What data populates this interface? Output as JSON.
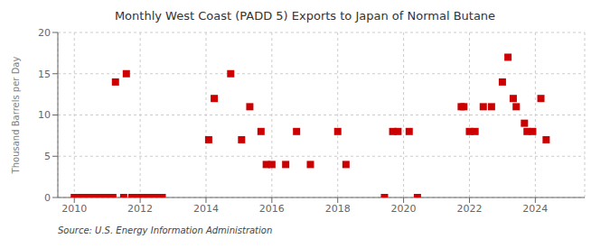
{
  "chart_data": {
    "type": "scatter",
    "title": "Monthly West Coast (PADD 5) Exports to Japan of Normal Butane",
    "ylabel": "Thousand Barrels per Day",
    "annotation": "Source: U.S. Energy Information Administration",
    "color": "#cc0000",
    "marker": "square",
    "grid": true,
    "xlim": [
      2009.5,
      2025.5
    ],
    "xticks": [
      2010,
      2012,
      2014,
      2016,
      2018,
      2020,
      2022,
      2024
    ],
    "ylim": [
      0,
      20
    ],
    "yticks": [
      0,
      5,
      10,
      15,
      20
    ],
    "x": [
      2010.0,
      2010.17,
      2010.33,
      2010.5,
      2010.67,
      2010.83,
      2011.0,
      2011.17,
      2011.25,
      2011.5,
      2011.58,
      2011.75,
      2011.83,
      2012.0,
      2012.08,
      2012.17,
      2012.33,
      2012.5,
      2012.58,
      2012.67,
      2014.08,
      2014.25,
      2014.75,
      2015.08,
      2015.33,
      2015.67,
      2015.83,
      2016.0,
      2016.42,
      2016.75,
      2017.17,
      2018.0,
      2018.25,
      2019.42,
      2019.67,
      2019.83,
      2020.17,
      2020.42,
      2021.75,
      2021.83,
      2022.0,
      2022.17,
      2022.42,
      2022.67,
      2023.0,
      2023.17,
      2023.33,
      2023.42,
      2023.67,
      2023.75,
      2023.92,
      2024.17,
      2024.33
    ],
    "values": [
      0.0,
      0.0,
      0.0,
      0.0,
      0.0,
      0.0,
      0.0,
      0.0,
      14.0,
      0.0,
      15.0,
      0.0,
      0.0,
      0.0,
      0.0,
      0.0,
      0.0,
      0.0,
      0.0,
      0.0,
      7.0,
      12.0,
      15.0,
      7.0,
      11.0,
      8.0,
      4.0,
      4.0,
      4.0,
      8.0,
      4.0,
      8.0,
      4.0,
      0.0,
      8.0,
      8.0,
      8.0,
      0.0,
      11.0,
      11.0,
      8.0,
      8.0,
      11.0,
      11.0,
      14.0,
      17.0,
      12.0,
      11.0,
      9.0,
      8.0,
      8.0,
      12.0,
      7.0
    ]
  }
}
